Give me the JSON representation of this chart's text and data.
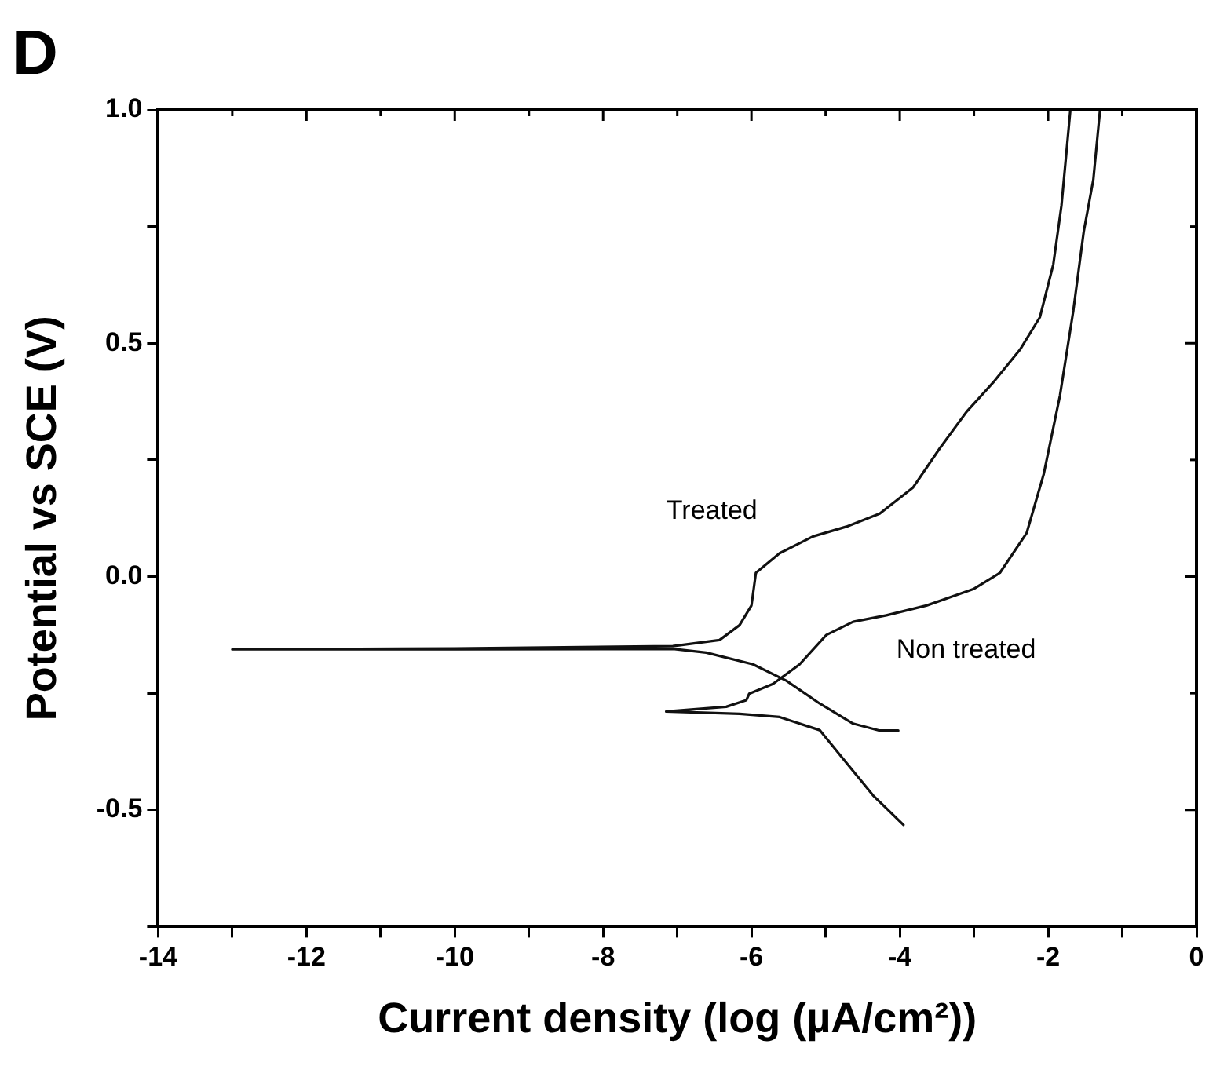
{
  "chart_data": {
    "type": "line",
    "title": "D",
    "xlabel": "Current density (log (µA/cm²))",
    "ylabel": "Potential vs SCE (V)",
    "xlim": [
      -14,
      0
    ],
    "ylim": [
      -0.75,
      1.0
    ],
    "xticks": [
      -14,
      {
        "value": -13,
        "label": null
      },
      -12,
      {
        "value": -11,
        "label": null
      },
      -10,
      {
        "value": -9,
        "label": null
      },
      -8,
      {
        "value": -7,
        "label": null
      },
      -6,
      {
        "value": -5,
        "label": null
      },
      -4,
      {
        "value": -3,
        "label": null
      },
      -2,
      {
        "value": -1,
        "label": null
      },
      0
    ],
    "yticks": [
      {
        "value": -0.75,
        "label": null
      },
      {
        "value": -0.5,
        "label": "-0.5"
      },
      {
        "value": -0.25,
        "label": null
      },
      {
        "value": 0,
        "label": "0.0"
      },
      {
        "value": 0.25,
        "label": null
      },
      {
        "value": 0.5,
        "label": "0.5"
      },
      {
        "value": 0.75,
        "label": null
      },
      {
        "value": 1,
        "label": "1.0"
      }
    ],
    "grid": false,
    "marker": "none",
    "line_style": "solid",
    "series": [
      {
        "name": "Treated",
        "color": "#111111",
        "x": [
          -4.02,
          -4.27,
          -4.63,
          -5.08,
          -5.53,
          -5.98,
          -6.61,
          -7.06,
          -10,
          -13,
          -10,
          -7.06,
          -6.43,
          -6.16,
          -6.0,
          -5.94,
          -5.62,
          -5.17,
          -4.72,
          -4.27,
          -3.82,
          -3.46,
          -3.1,
          -2.74,
          -2.38,
          -2.11,
          -1.93,
          -1.82,
          -1.7
        ],
        "values": [
          -0.33,
          -0.33,
          -0.315,
          -0.272,
          -0.223,
          -0.188,
          -0.163,
          -0.155,
          -0.156,
          -0.156,
          -0.154,
          -0.149,
          -0.136,
          -0.104,
          -0.062,
          0.008,
          0.05,
          0.086,
          0.107,
          0.135,
          0.191,
          0.275,
          0.353,
          0.416,
          0.486,
          0.556,
          0.669,
          0.795,
          1.0
        ]
      },
      {
        "name": "Non treated",
        "color": "#111111",
        "x": [
          -3.95,
          -4.36,
          -4.72,
          -5.08,
          -5.62,
          -6.16,
          -7.15,
          -6.34,
          -6.07,
          -6.03,
          -5.71,
          -5.35,
          -4.99,
          -4.63,
          -4.18,
          -3.64,
          -3.01,
          -2.65,
          -2.29,
          -2.06,
          -1.84,
          -1.66,
          -1.52,
          -1.39,
          -1.3
        ],
        "values": [
          -0.532,
          -0.469,
          -0.399,
          -0.329,
          -0.301,
          -0.294,
          -0.289,
          -0.279,
          -0.265,
          -0.251,
          -0.23,
          -0.188,
          -0.125,
          -0.097,
          -0.083,
          -0.062,
          -0.027,
          0.008,
          0.093,
          0.219,
          0.388,
          0.57,
          0.739,
          0.851,
          1.0
        ]
      }
    ]
  }
}
